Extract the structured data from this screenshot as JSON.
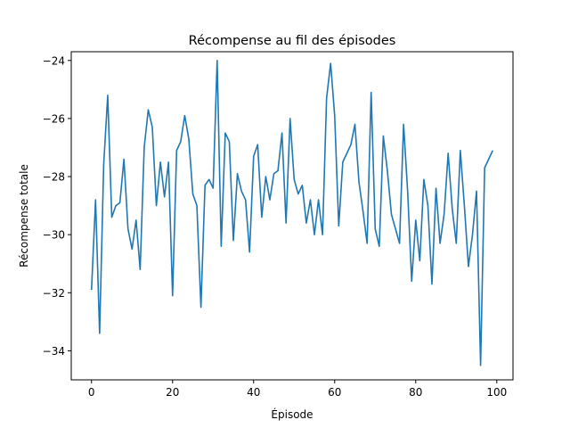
{
  "chart_data": {
    "type": "line",
    "title": "Récompense au fil des épisodes",
    "xlabel": "Épisode",
    "ylabel": "Récompense totale",
    "xlim": [
      -5,
      104
    ],
    "ylim": [
      -35.0,
      -23.7
    ],
    "xticks": [
      0,
      20,
      40,
      60,
      80,
      100
    ],
    "yticks": [
      -34,
      -32,
      -30,
      -28,
      -26,
      -24
    ],
    "ytick_labels": [
      "−34",
      "−32",
      "−30",
      "−28",
      "−26",
      "−24"
    ],
    "grid": false,
    "legend": "none",
    "colors": {
      "line": "#1f77b4",
      "axes": "#000000",
      "background": "#ffffff"
    },
    "series": [
      {
        "x": [
          0,
          1,
          2,
          3,
          4,
          5,
          6,
          7,
          8,
          9,
          10,
          11,
          12,
          13,
          14,
          15,
          16,
          17,
          18,
          19,
          20,
          21,
          22,
          23,
          24,
          25,
          26,
          27,
          28,
          29,
          30,
          31,
          32,
          33,
          34,
          35,
          36,
          37,
          38,
          39,
          40,
          41,
          42,
          43,
          44,
          45,
          46,
          47,
          48,
          49,
          50,
          51,
          52,
          53,
          54,
          55,
          56,
          57,
          58,
          59,
          60,
          61,
          62,
          63,
          64,
          65,
          66,
          67,
          68,
          69,
          70,
          71,
          72,
          73,
          74,
          75,
          76,
          77,
          78,
          79,
          80,
          81,
          82,
          83,
          84,
          85,
          86,
          87,
          88,
          89,
          90,
          91,
          92,
          93,
          94,
          95,
          96,
          97,
          98,
          99
        ],
        "y": [
          -31.9,
          -28.8,
          -33.4,
          -27.6,
          -25.2,
          -29.4,
          -29.0,
          -28.9,
          -27.4,
          -29.8,
          -30.5,
          -29.5,
          -31.2,
          -27.0,
          -25.7,
          -26.3,
          -29.0,
          -27.5,
          -28.7,
          -27.5,
          -32.1,
          -27.1,
          -26.8,
          -25.9,
          -26.7,
          -28.6,
          -29.0,
          -32.5,
          -28.3,
          -28.1,
          -28.4,
          -24.0,
          -30.4,
          -26.5,
          -26.8,
          -30.2,
          -27.9,
          -28.5,
          -28.8,
          -30.6,
          -27.3,
          -26.9,
          -29.4,
          -28.0,
          -28.8,
          -27.9,
          -27.8,
          -26.5,
          -29.6,
          -26.0,
          -28.1,
          -28.6,
          -28.3,
          -29.6,
          -28.8,
          -30.0,
          -28.8,
          -30.0,
          -25.3,
          -24.1,
          -25.9,
          -29.7,
          -27.5,
          -27.2,
          -26.9,
          -26.2,
          -28.2,
          -29.2,
          -30.3,
          -25.1,
          -29.8,
          -30.4,
          -26.6,
          -27.8,
          -29.3,
          -29.8,
          -30.3,
          -26.2,
          -28.5,
          -31.6,
          -29.5,
          -30.9,
          -28.1,
          -29.0,
          -31.7,
          -28.4,
          -30.3,
          -29.3,
          -27.2,
          -29.1,
          -30.3,
          -27.1,
          -29.0,
          -31.1,
          -30.0,
          -28.5,
          -34.5,
          -27.7,
          -27.4,
          -27.1
        ]
      }
    ]
  }
}
